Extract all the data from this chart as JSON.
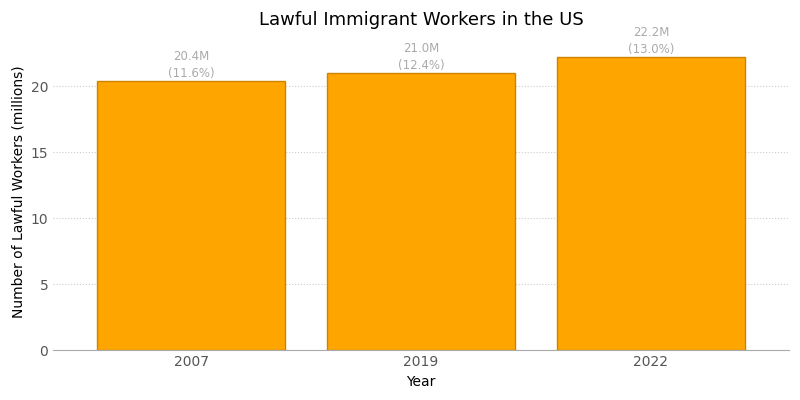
{
  "title": "Lawful Immigrant Workers in the US",
  "xlabel": "Year",
  "ylabel": "Number of Lawful Workers (millions)",
  "categories": [
    "2007",
    "2019",
    "2022"
  ],
  "values": [
    20.4,
    21.0,
    22.2
  ],
  "bar_color": "#FFA500",
  "bar_edgecolor": "#cc8400",
  "labels_line1": [
    "20.4M",
    "21.0M",
    "22.2M"
  ],
  "labels_line2": [
    "(11.6%)",
    "(12.4%)",
    "(13.0%)"
  ],
  "ylim": [
    0,
    24
  ],
  "yticks": [
    0,
    5,
    10,
    15,
    20
  ],
  "grid_color": "#cccccc",
  "label_color": "#aaaaaa",
  "title_fontsize": 13,
  "axis_label_fontsize": 10,
  "tick_fontsize": 10,
  "annotation_fontsize": 8.5,
  "background_color": "#ffffff",
  "bar_width": 0.82
}
